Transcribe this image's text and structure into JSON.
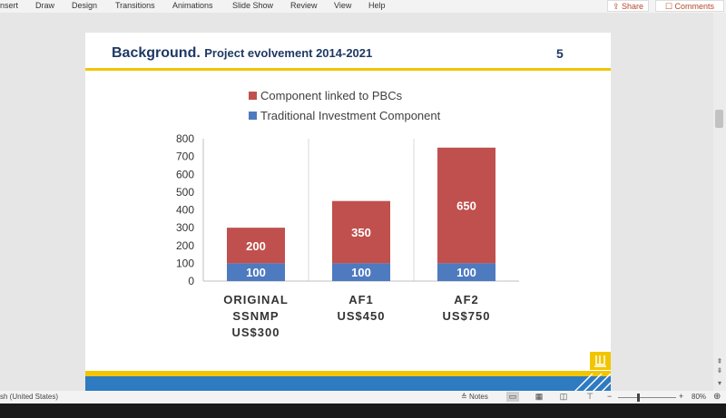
{
  "ribbon": {
    "tabs": [
      "nsert",
      "Draw",
      "Design",
      "Transitions",
      "Animations",
      "Slide Show",
      "Review",
      "View",
      "Help"
    ],
    "share_label": "Share",
    "comments_label": "Comments"
  },
  "slide": {
    "title_main": "Background.",
    "title_sub": "Project evolvement 2014-2021",
    "number": "5"
  },
  "chart_data": {
    "type": "bar",
    "stacked": true,
    "categories": [
      [
        "ORIGINAL",
        "SSNMP",
        "US$300"
      ],
      [
        "AF1",
        "US$450"
      ],
      [
        "AF2",
        "US$750"
      ]
    ],
    "series": [
      {
        "name": "Traditional Investment Component",
        "color": "#4e7ac0",
        "values": [
          100,
          100,
          100
        ]
      },
      {
        "name": "Component linked to PBCs",
        "color": "#c0504d",
        "values": [
          200,
          350,
          650
        ]
      }
    ],
    "legend_order": [
      1,
      0
    ],
    "legend_position": "top",
    "ylim": [
      0,
      800
    ],
    "yticks": [
      0,
      100,
      200,
      300,
      400,
      500,
      600,
      700,
      800
    ],
    "grid": false
  },
  "statusbar": {
    "language": "sh (United States)",
    "notes_label": "Notes",
    "zoom": "80%"
  }
}
